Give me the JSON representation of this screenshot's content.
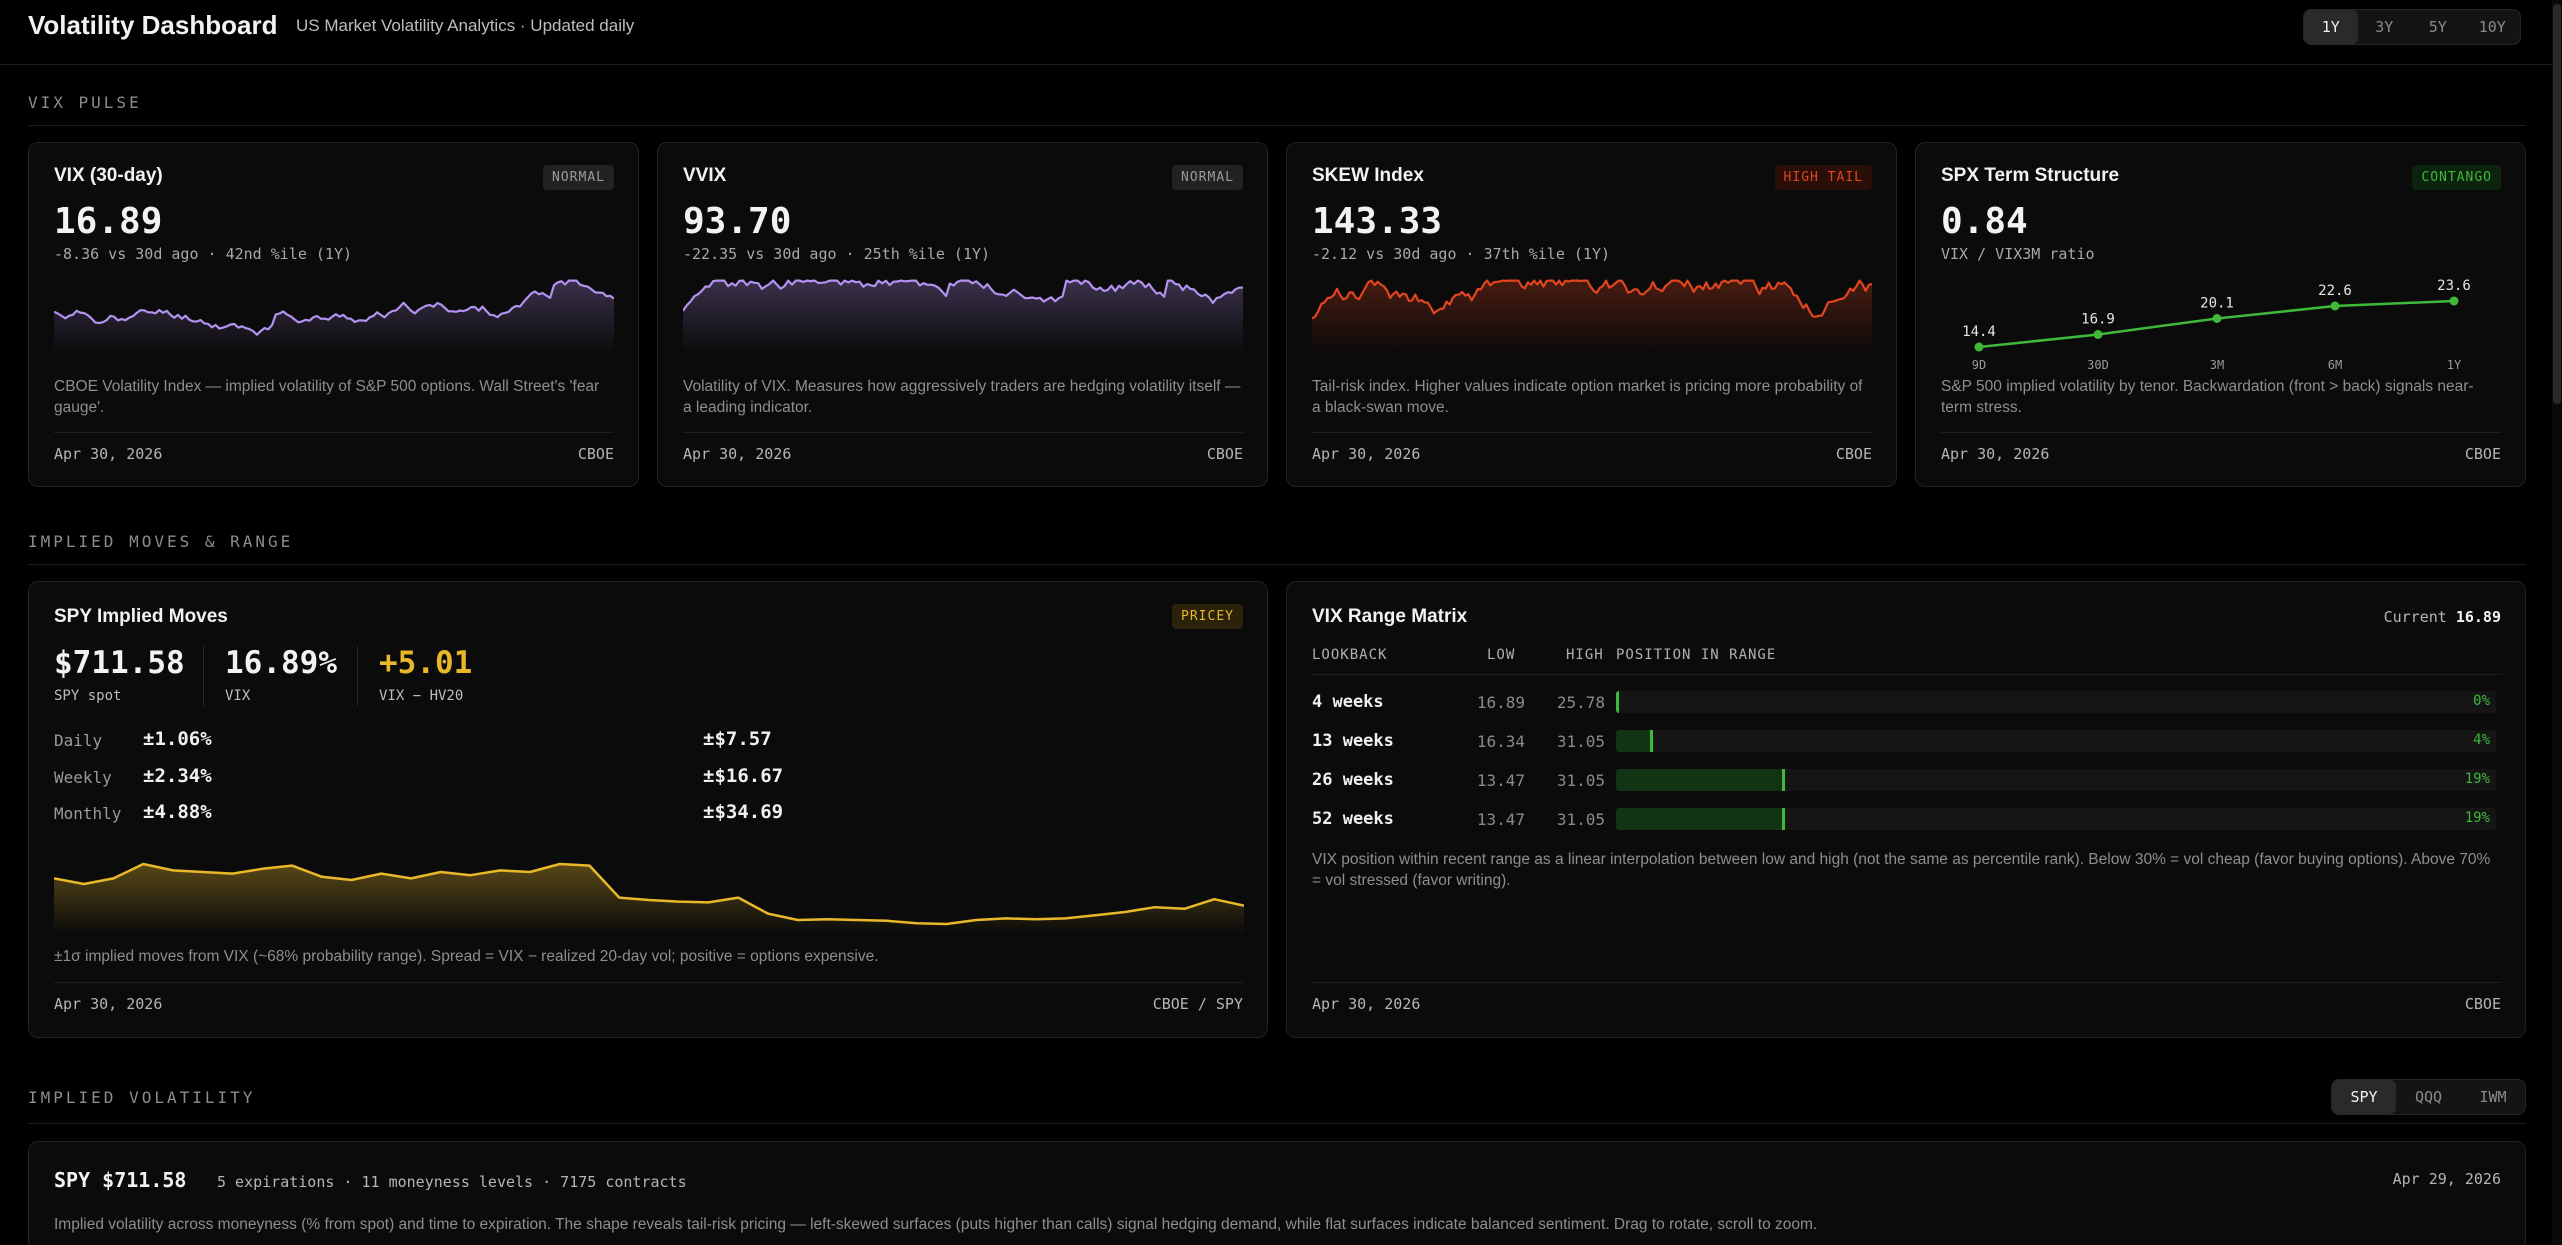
{
  "header": {
    "title": "Volatility Dashboard",
    "subtitle": "US Market Volatility Analytics · Updated daily",
    "ranges": [
      "1Y",
      "3Y",
      "5Y",
      "10Y"
    ],
    "active_range": "1Y"
  },
  "sections": {
    "pulse": "VIX PULSE",
    "moves": "IMPLIED MOVES & RANGE",
    "iv": "IMPLIED VOLATILITY"
  },
  "pulse_cards": [
    {
      "title": "VIX (30-day)",
      "badge": "NORMAL",
      "value": "16.89",
      "sub": "-8.36 vs 30d ago · 42nd %ile (1Y)",
      "desc": "CBOE Volatility Index — implied volatility of S&P 500 options. Wall Street's 'fear gauge'.",
      "date": "Apr 30, 2026",
      "source": "CBOE",
      "color": "#b392f0"
    },
    {
      "title": "VVIX",
      "badge": "NORMAL",
      "value": "93.70",
      "sub": "-22.35 vs 30d ago · 25th %ile (1Y)",
      "desc": "Volatility of VIX. Measures how aggressively traders are hedging volatility itself — a leading indicator.",
      "date": "Apr 30, 2026",
      "source": "CBOE",
      "color": "#b392f0"
    },
    {
      "title": "SKEW Index",
      "badge": "HIGH TAIL",
      "value": "143.33",
      "sub": "-2.12 vs 30d ago · 37th %ile (1Y)",
      "desc": "Tail-risk index. Higher values indicate option market is pricing more probability of a black-swan move.",
      "date": "Apr 30, 2026",
      "source": "CBOE",
      "color": "#e2451f"
    },
    {
      "title": "SPX Term Structure",
      "badge": "CONTANGO",
      "value": "0.84",
      "sub": "VIX / VIX3M ratio",
      "desc": "S&P 500 implied volatility by tenor. Backwardation (front > back) signals near-term stress.",
      "date": "Apr 30, 2026",
      "source": "CBOE",
      "color": "#3fb93a",
      "term": {
        "tenors": [
          "9D",
          "30D",
          "3M",
          "6M",
          "1Y"
        ],
        "values": [
          14.4,
          16.9,
          20.1,
          22.6,
          23.6
        ]
      }
    }
  ],
  "implied_moves": {
    "title": "SPY Implied Moves",
    "badge": "PRICEY",
    "stats": [
      {
        "value": "$711.58",
        "label": "SPY spot"
      },
      {
        "value": "16.89%",
        "label": "VIX"
      },
      {
        "value": "+5.01",
        "label": "VIX − HV20"
      }
    ],
    "rows": [
      {
        "label": "Daily",
        "pct": "±1.06%",
        "usd": "±$7.57"
      },
      {
        "label": "Weekly",
        "pct": "±2.34%",
        "usd": "±$16.67"
      },
      {
        "label": "Monthly",
        "pct": "±4.88%",
        "usd": "±$34.69"
      }
    ],
    "desc": "±1σ implied moves from VIX (~68% probability range). Spread = VIX − realized 20-day vol; positive = options expensive.",
    "date": "Apr 30, 2026",
    "source": "CBOE / SPY",
    "spread_color": "#e8b82a"
  },
  "range_matrix": {
    "title": "VIX Range Matrix",
    "current_label": "Current",
    "current_value": "16.89",
    "headers": [
      "LOOKBACK",
      "LOW",
      "HIGH",
      "POSITION IN RANGE"
    ],
    "rows": [
      {
        "label": "4 weeks",
        "low": "16.89",
        "high": "25.78",
        "pct": "0%",
        "frac": 0.0
      },
      {
        "label": "13 weeks",
        "low": "16.34",
        "high": "31.05",
        "pct": "4%",
        "frac": 0.04
      },
      {
        "label": "26 weeks",
        "low": "13.47",
        "high": "31.05",
        "pct": "19%",
        "frac": 0.19
      },
      {
        "label": "52 weeks",
        "low": "13.47",
        "high": "31.05",
        "pct": "19%",
        "frac": 0.19
      }
    ],
    "desc": "VIX position within recent range as a linear interpolation between low and high (not the same as percentile rank). Below 30% = vol cheap (favor buying options). Above 70% = vol stressed (favor writing).",
    "date": "Apr 30, 2026",
    "source": "CBOE"
  },
  "iv": {
    "tickers": [
      "SPY",
      "QQQ",
      "IWM"
    ],
    "active": "SPY",
    "card_ticker": "SPY",
    "card_price": "$711.58",
    "meta": "5 expirations · 11 moneyness levels · 7175 contracts",
    "date": "Apr 29, 2026",
    "desc": "Implied volatility across moneyness (% from spot) and time to expiration. The shape reveals tail-risk pricing — left-skewed surfaces (puts higher than calls) signal hedging demand, while flat surfaces indicate balanced sentiment. Drag to rotate, scroll to zoom."
  }
}
